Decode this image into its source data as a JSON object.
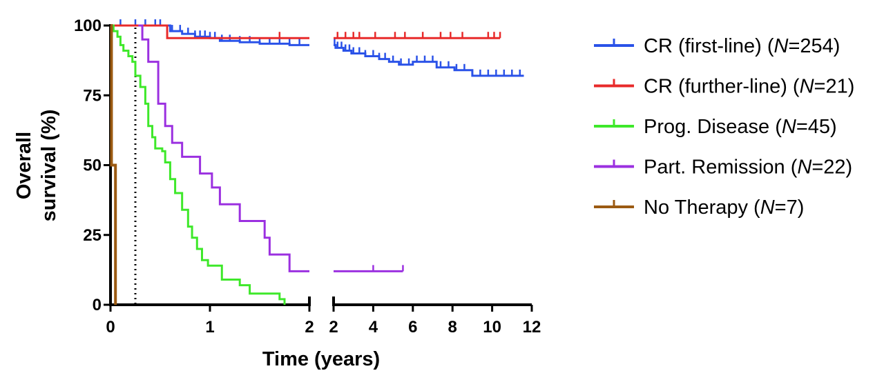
{
  "chart_data": {
    "type": "line",
    "subtype": "kaplan-meier",
    "title": "",
    "xlabel": "Time (years)",
    "ylabel_lines": [
      "Overall",
      "survival (%)"
    ],
    "ylim": [
      0,
      100
    ],
    "yticks": [
      0,
      25,
      50,
      75,
      100
    ],
    "x_segments": [
      {
        "xlim": [
          0,
          2
        ],
        "ticks": [
          0,
          1,
          2
        ]
      },
      {
        "xlim": [
          2,
          12
        ],
        "ticks": [
          2,
          4,
          6,
          8,
          10,
          12
        ]
      }
    ],
    "reference_line": {
      "x": 0.25,
      "style": "dotted"
    },
    "series": [
      {
        "name": "CR (first-line)",
        "n_label": "N",
        "n_value": "=254",
        "color": "#2a52e8",
        "steps": [
          [
            0,
            100
          ],
          [
            0.6,
            98
          ],
          [
            0.72,
            97
          ],
          [
            0.85,
            96
          ],
          [
            1.0,
            95.5
          ],
          [
            1.1,
            94.5
          ],
          [
            1.3,
            94
          ],
          [
            1.5,
            93.5
          ],
          [
            1.8,
            93
          ],
          [
            2.0,
            93
          ],
          [
            2.1,
            92
          ],
          [
            2.5,
            91
          ],
          [
            2.9,
            90
          ],
          [
            3.6,
            89
          ],
          [
            4.3,
            88
          ],
          [
            4.8,
            87
          ],
          [
            5.3,
            86
          ],
          [
            6.0,
            87
          ],
          [
            7.2,
            85
          ],
          [
            8.1,
            84
          ],
          [
            8.5,
            84
          ],
          [
            9.0,
            82
          ],
          [
            11.6,
            82
          ]
        ],
        "censors": [
          0.1,
          0.25,
          0.35,
          0.45,
          0.5,
          0.62,
          0.7,
          0.78,
          0.85,
          0.9,
          0.95,
          1.0,
          1.05,
          1.12,
          1.2,
          1.3,
          1.4,
          1.5,
          1.6,
          1.7,
          1.8,
          1.9,
          2.05,
          2.2,
          2.4,
          2.6,
          2.8,
          3.0,
          3.3,
          3.6,
          4.0,
          4.3,
          4.6,
          5.0,
          5.4,
          5.8,
          6.2,
          6.6,
          7.0,
          7.4,
          7.8,
          8.2,
          8.6,
          9.0,
          9.4,
          9.8,
          10.2,
          10.6,
          11.0,
          11.4
        ]
      },
      {
        "name": "CR (further-line)",
        "n_label": "N",
        "n_value": "=21",
        "color": "#e82a2a",
        "steps": [
          [
            0,
            100
          ],
          [
            0.57,
            95.5
          ],
          [
            10.4,
            95.5
          ]
        ],
        "censors": [
          1.7,
          2.2,
          2.6,
          3.0,
          3.3,
          4.1,
          5.1,
          5.6,
          6.5,
          7.4,
          7.9,
          8.5,
          9.8,
          10.1,
          10.4
        ]
      },
      {
        "name": "Prog. Disease",
        "n_label": "N",
        "n_value": "=45",
        "color": "#3ee82a",
        "steps": [
          [
            0,
            100
          ],
          [
            0.03,
            98
          ],
          [
            0.07,
            96
          ],
          [
            0.1,
            93
          ],
          [
            0.13,
            91
          ],
          [
            0.18,
            89
          ],
          [
            0.22,
            87
          ],
          [
            0.25,
            82
          ],
          [
            0.3,
            78
          ],
          [
            0.35,
            72
          ],
          [
            0.38,
            64
          ],
          [
            0.42,
            60
          ],
          [
            0.45,
            56
          ],
          [
            0.52,
            55
          ],
          [
            0.55,
            51
          ],
          [
            0.6,
            45
          ],
          [
            0.65,
            40
          ],
          [
            0.72,
            34
          ],
          [
            0.78,
            28
          ],
          [
            0.82,
            24
          ],
          [
            0.87,
            20
          ],
          [
            0.92,
            16
          ],
          [
            0.98,
            14
          ],
          [
            1.12,
            9
          ],
          [
            1.3,
            7
          ],
          [
            1.4,
            4
          ],
          [
            1.7,
            2
          ],
          [
            1.75,
            0
          ]
        ],
        "censors": []
      },
      {
        "name": "Part. Remission",
        "n_label": "N",
        "n_value": "=22",
        "color": "#9b30e0",
        "steps": [
          [
            0.28,
            100
          ],
          [
            0.32,
            95
          ],
          [
            0.38,
            87
          ],
          [
            0.48,
            72
          ],
          [
            0.55,
            64
          ],
          [
            0.62,
            58
          ],
          [
            0.72,
            53
          ],
          [
            0.9,
            47
          ],
          [
            1.02,
            42
          ],
          [
            1.1,
            36
          ],
          [
            1.3,
            30
          ],
          [
            1.55,
            24
          ],
          [
            1.6,
            18
          ],
          [
            1.8,
            12
          ],
          [
            5.5,
            12
          ]
        ],
        "censors": [
          4.0,
          5.5
        ]
      },
      {
        "name": "No Therapy",
        "n_label": "N",
        "n_value": "=7",
        "color": "#9b5a12",
        "steps": [
          [
            0,
            100
          ],
          [
            0.01,
            50
          ],
          [
            0.03,
            50
          ],
          [
            0.05,
            0
          ]
        ],
        "censors": []
      }
    ]
  }
}
